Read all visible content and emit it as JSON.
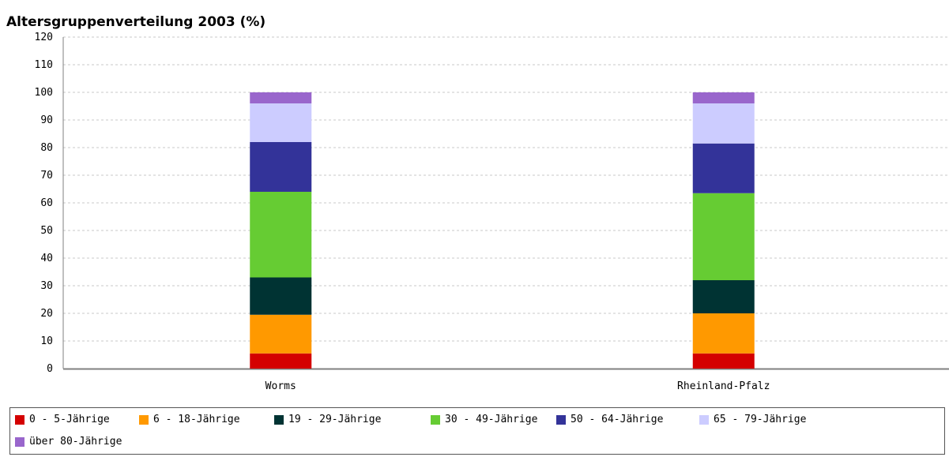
{
  "chart_data": {
    "type": "bar",
    "stacked": true,
    "title": "Altersgruppenverteilung 2003 (%)",
    "categories": [
      "Worms",
      "Rheinland-Pfalz"
    ],
    "ylim": [
      0,
      120
    ],
    "yticks": [
      0,
      10,
      20,
      30,
      40,
      50,
      60,
      70,
      80,
      90,
      100,
      110,
      120
    ],
    "grid": true,
    "legend_position": "bottom",
    "series": [
      {
        "name": "0 - 5-Jährige",
        "color": "#d40000",
        "values": [
          5.5,
          5.5
        ]
      },
      {
        "name": "6 - 18-Jährige",
        "color": "#ff9900",
        "values": [
          14.0,
          14.5
        ]
      },
      {
        "name": "19 - 29-Jährige",
        "color": "#003333",
        "values": [
          13.5,
          12.0
        ]
      },
      {
        "name": "30 - 49-Jährige",
        "color": "#66cc33",
        "values": [
          31.0,
          31.5
        ]
      },
      {
        "name": "50 - 64-Jährige",
        "color": "#333399",
        "values": [
          18.0,
          18.0
        ]
      },
      {
        "name": "65 - 79-Jährige",
        "color": "#ccccff",
        "values": [
          14.0,
          14.5
        ]
      },
      {
        "name": "über 80-Jährige",
        "color": "#9966cc",
        "values": [
          4.0,
          4.0
        ]
      }
    ]
  }
}
